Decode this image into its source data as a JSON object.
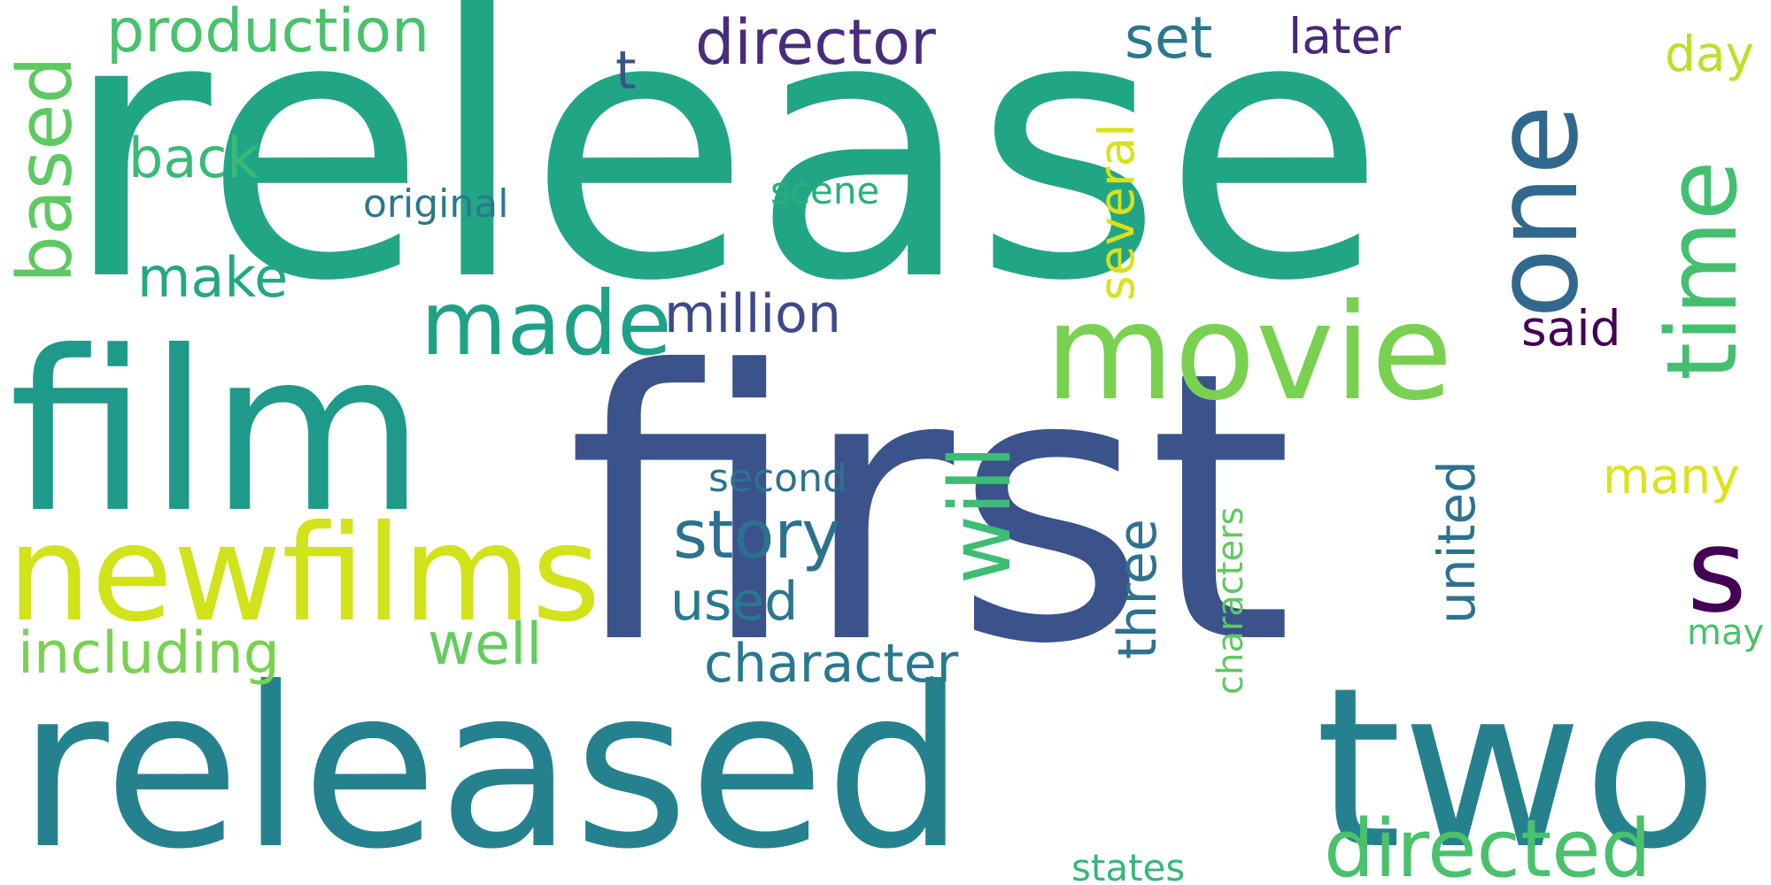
{
  "words": [
    {
      "text": "release",
      "color": "#21a685"
    },
    {
      "text": "first",
      "color": "#3b528b"
    },
    {
      "text": "film",
      "color": "#1f9a8a"
    },
    {
      "text": "released",
      "color": "#26818e"
    },
    {
      "text": "two",
      "color": "#26818e"
    },
    {
      "text": "newfilms",
      "color": "#d2e21b"
    },
    {
      "text": "movie",
      "color": "#7ad151"
    },
    {
      "text": "one",
      "color": "#31688e"
    },
    {
      "text": "time",
      "color": "#44bf70"
    },
    {
      "text": "s",
      "color": "#440154"
    },
    {
      "text": "directed",
      "color": "#4ac16d"
    },
    {
      "text": "will",
      "color": "#3dbc74"
    },
    {
      "text": "made",
      "color": "#1fa187"
    },
    {
      "text": "based",
      "color": "#5ec962"
    },
    {
      "text": "story",
      "color": "#2c728e"
    },
    {
      "text": "director",
      "color": "#472d7b"
    },
    {
      "text": "production",
      "color": "#4ac16d"
    },
    {
      "text": "character",
      "color": "#2a788e"
    },
    {
      "text": "including",
      "color": "#7ad151"
    },
    {
      "text": "well",
      "color": "#65cb5e"
    },
    {
      "text": "million",
      "color": "#3e4989"
    },
    {
      "text": "used",
      "color": "#2a788e"
    },
    {
      "text": "united",
      "color": "#2c728e"
    },
    {
      "text": "three",
      "color": "#2c728e"
    },
    {
      "text": "make",
      "color": "#22a884"
    },
    {
      "text": "back",
      "color": "#3aba76"
    },
    {
      "text": "set",
      "color": "#2a788e"
    },
    {
      "text": "later",
      "color": "#482878"
    },
    {
      "text": "several",
      "color": "#d8e219"
    },
    {
      "text": "many",
      "color": "#dde318"
    },
    {
      "text": "said",
      "color": "#440154"
    },
    {
      "text": "day",
      "color": "#bddf26"
    },
    {
      "text": "t",
      "color": "#3b528b"
    },
    {
      "text": "second",
      "color": "#2c728e"
    },
    {
      "text": "original",
      "color": "#2a788e"
    },
    {
      "text": "scene",
      "color": "#29af7f"
    },
    {
      "text": "characters",
      "color": "#5ec962"
    },
    {
      "text": "states",
      "color": "#35b779"
    },
    {
      "text": "may",
      "color": "#4ac16d"
    }
  ]
}
